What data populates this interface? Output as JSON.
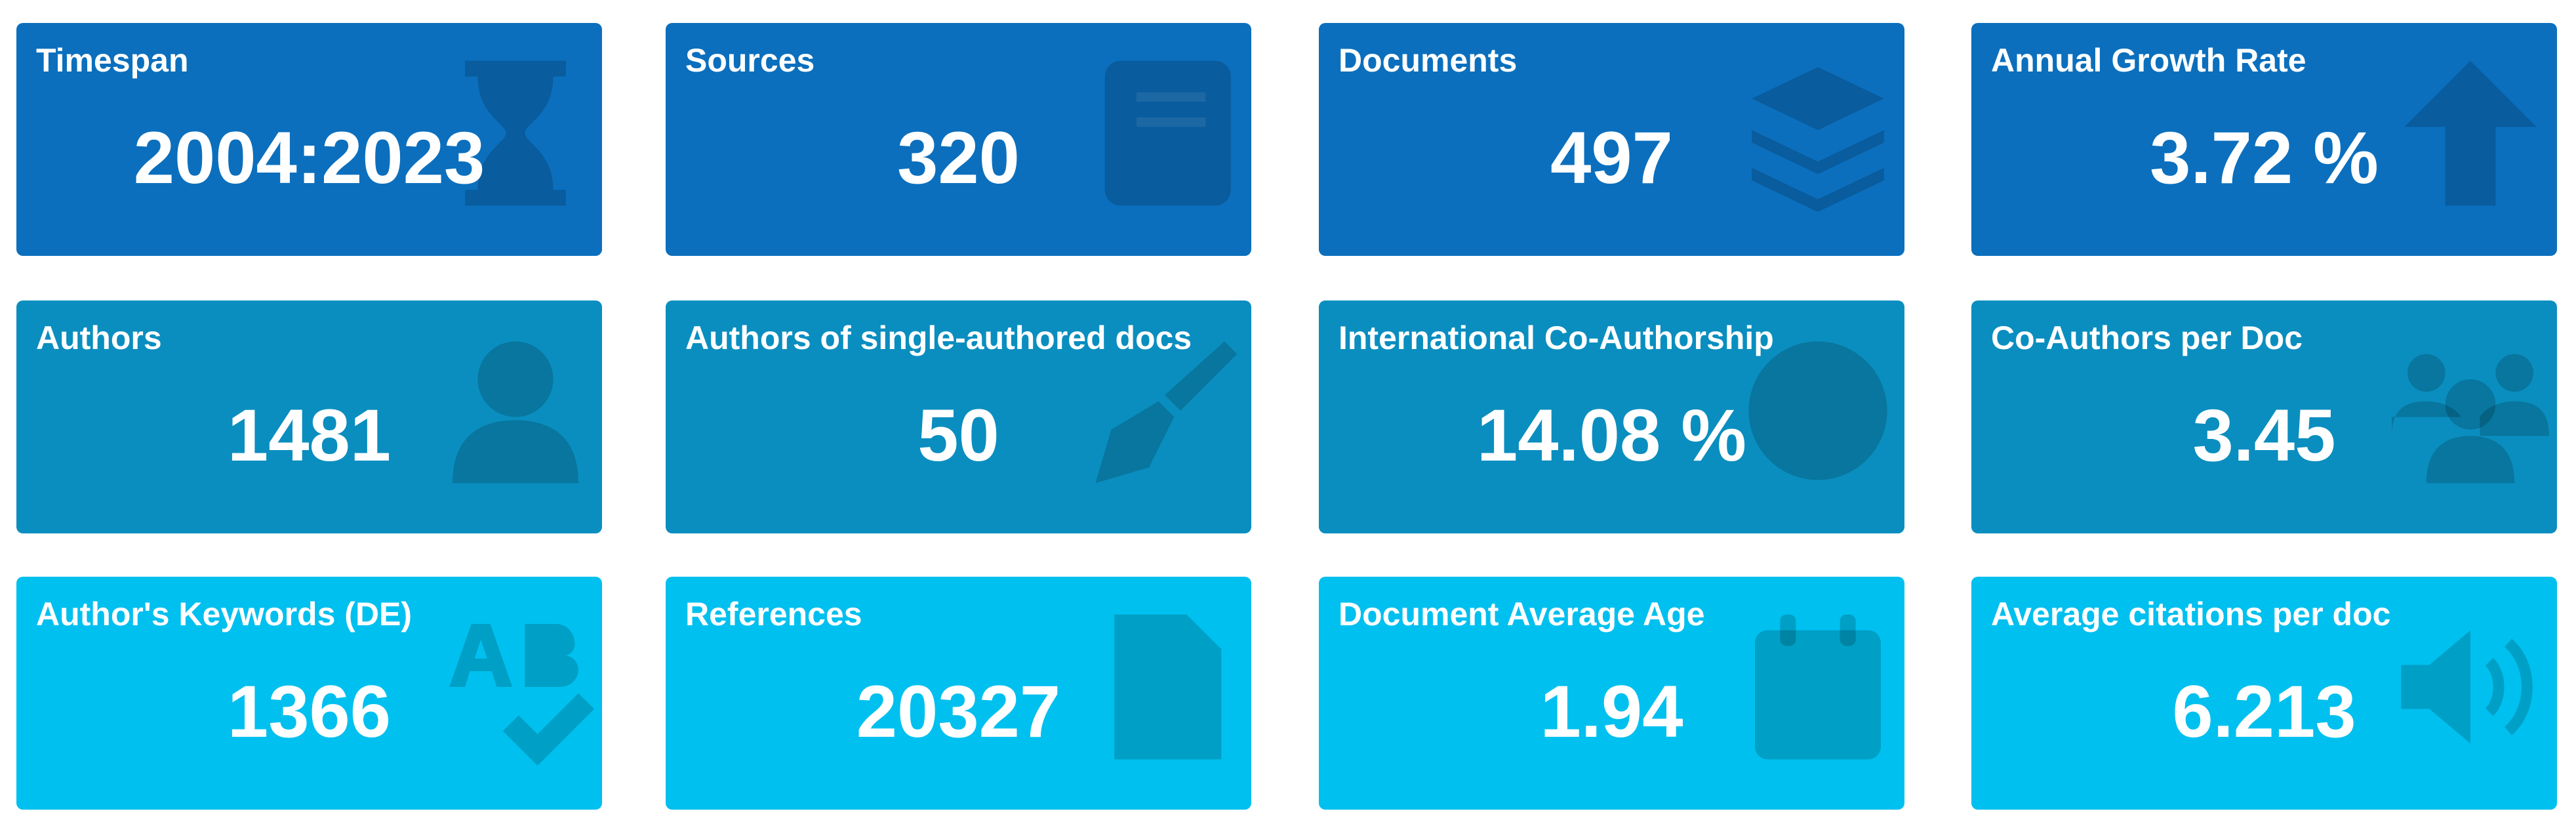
{
  "cards": [
    {
      "label": "Timespan",
      "value": "2004:2023"
    },
    {
      "label": "Sources",
      "value": "320"
    },
    {
      "label": "Documents",
      "value": "497"
    },
    {
      "label": "Annual Growth Rate",
      "value": "3.72 %"
    },
    {
      "label": "Authors",
      "value": "1481"
    },
    {
      "label": "Authors of single-authored docs",
      "value": "50"
    },
    {
      "label": "International Co-Authorship",
      "value": "14.08 %"
    },
    {
      "label": "Co-Authors per Doc",
      "value": "3.45"
    },
    {
      "label": "Author's Keywords (DE)",
      "value": "1366"
    },
    {
      "label": "References",
      "value": "20327"
    },
    {
      "label": "Document Average Age",
      "value": "1.94"
    },
    {
      "label": "Average citations per doc",
      "value": "6.213"
    }
  ]
}
